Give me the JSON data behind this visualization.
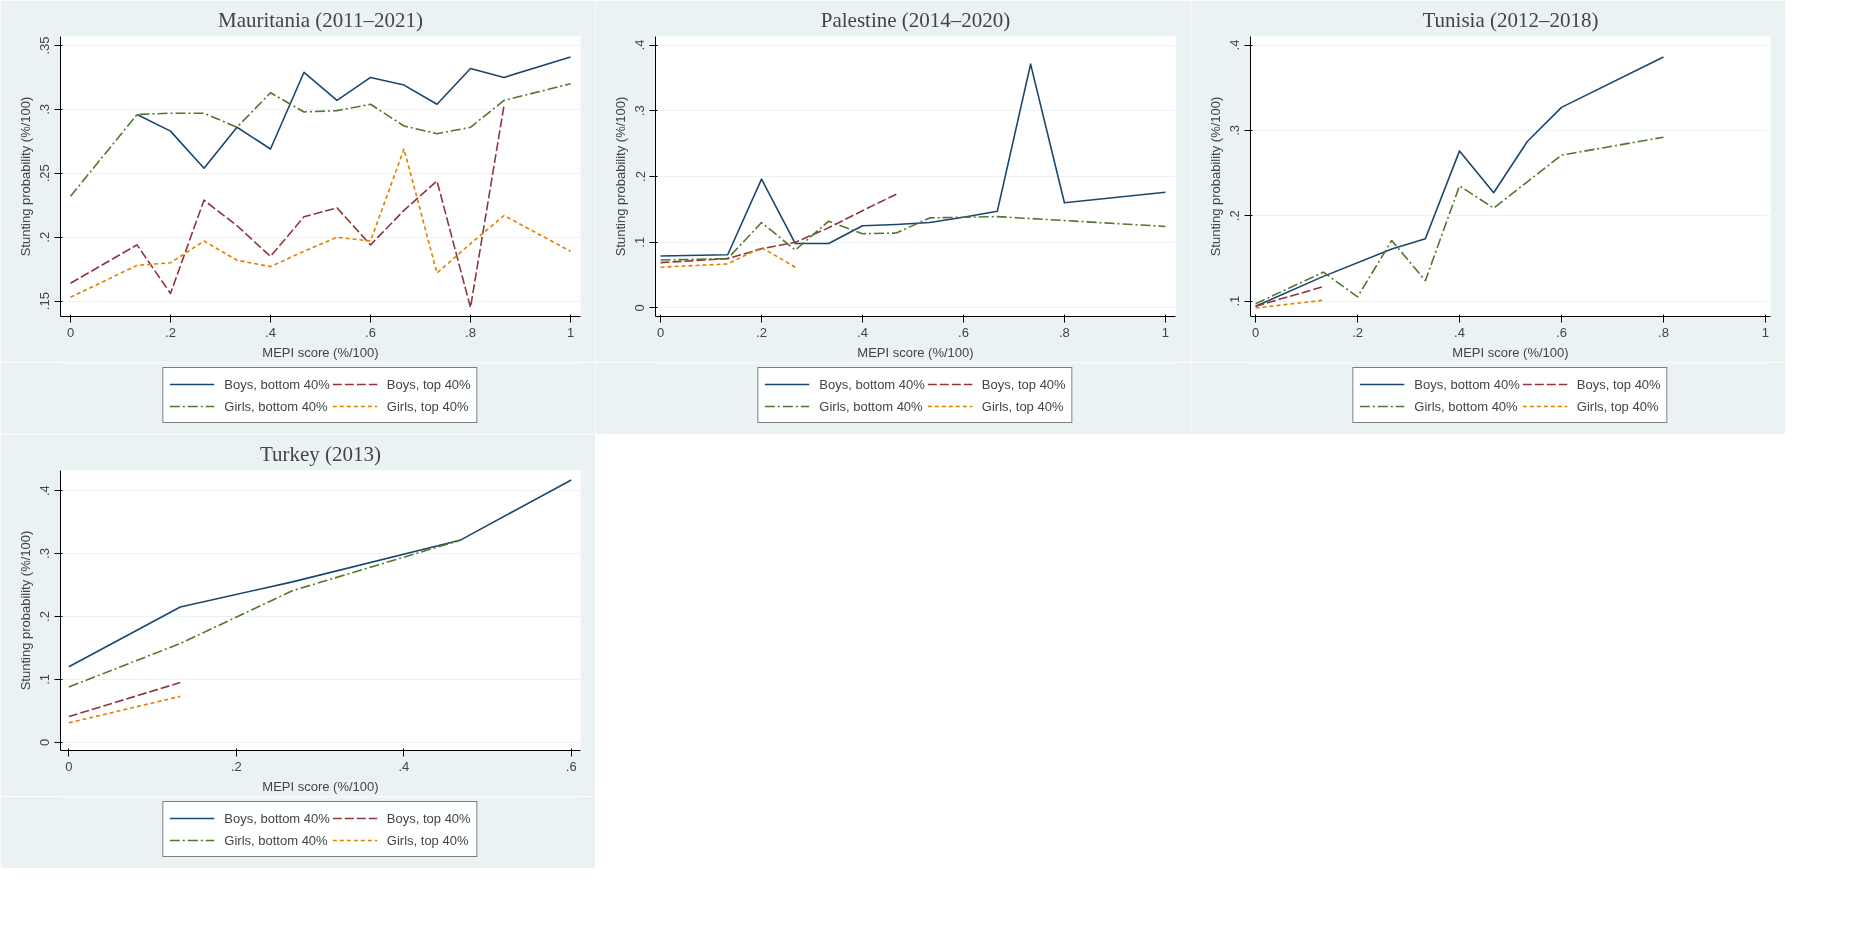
{
  "chart_data": [
    {
      "type": "line",
      "title": "Mauritania (2011–2021)",
      "xlabel": "MEPI score (%/100)",
      "ylabel": "Stunting probability (%/100)",
      "xlim": [
        -0.02,
        1.02
      ],
      "ylim": [
        0.138,
        0.357
      ],
      "xticks": [
        0,
        {
          "value": 0.2,
          "label": ".2"
        },
        {
          "value": 0.4,
          "label": ".4"
        },
        {
          "value": 0.6,
          "label": ".6"
        },
        {
          "value": 0.8,
          "label": ".8"
        },
        1
      ],
      "yticks": [
        {
          "value": 0.15,
          "label": ".15"
        },
        {
          "value": 0.2,
          "label": ".2"
        },
        {
          "value": 0.25,
          "label": ".25"
        },
        {
          "value": 0.3,
          "label": ".3"
        },
        {
          "value": 0.35,
          "label": ".35"
        }
      ],
      "grid": "y",
      "legend": "bottom",
      "series": [
        {
          "name": "Boys, bottom 40%",
          "color": "#1a476f",
          "line_style": "solid",
          "x": [
            0.133,
            0.2,
            0.267,
            0.333,
            0.4,
            0.467,
            0.533,
            0.6,
            0.667,
            0.733,
            0.8,
            0.867,
            1
          ],
          "values": [
            0.296,
            0.283,
            0.254,
            0.286,
            0.269,
            0.329,
            0.307,
            0.325,
            0.319,
            0.304,
            0.332,
            0.325,
            0.341
          ]
        },
        {
          "name": "Boys, top 40%",
          "color": "#90353b",
          "line_style": "longdash",
          "x": [
            0,
            0.133,
            0.2,
            0.267,
            0.333,
            0.4,
            0.467,
            0.533,
            0.6,
            0.667,
            0.733,
            0.8,
            0.867
          ],
          "values": [
            0.164,
            0.194,
            0.156,
            0.229,
            0.209,
            0.185,
            0.216,
            0.223,
            0.194,
            0.221,
            0.244,
            0.145,
            0.303
          ]
        },
        {
          "name": "Girls, bottom 40%",
          "color": "#55752f",
          "line_style": "dashdot",
          "x": [
            0,
            0.133,
            0.2,
            0.267,
            0.333,
            0.4,
            0.467,
            0.533,
            0.6,
            0.667,
            0.733,
            0.8,
            0.867,
            1
          ],
          "values": [
            0.232,
            0.296,
            0.297,
            0.297,
            0.286,
            0.313,
            0.298,
            0.299,
            0.304,
            0.287,
            0.281,
            0.286,
            0.307,
            0.32
          ]
        },
        {
          "name": "Girls, top 40%",
          "color": "#e37e00",
          "line_style": "dashed",
          "x": [
            0,
            0.133,
            0.2,
            0.267,
            0.333,
            0.4,
            0.467,
            0.533,
            0.6,
            0.667,
            0.733,
            0.8,
            0.867,
            1
          ],
          "values": [
            0.153,
            0.178,
            0.18,
            0.197,
            0.182,
            0.177,
            0.189,
            0.2,
            0.197,
            0.269,
            0.172,
            0.195,
            0.217,
            0.189
          ]
        }
      ]
    },
    {
      "type": "line",
      "title": "Palestine (2014–2020)",
      "xlabel": "MEPI score (%/100)",
      "ylabel": "Stunting probability (%/100)",
      "xlim": [
        -0.01,
        1.02
      ],
      "ylim": [
        -0.013,
        0.413
      ],
      "xticks": [
        0,
        {
          "value": 0.2,
          "label": ".2"
        },
        {
          "value": 0.4,
          "label": ".4"
        },
        {
          "value": 0.6,
          "label": ".6"
        },
        {
          "value": 0.8,
          "label": ".8"
        },
        1
      ],
      "yticks": [
        0,
        {
          "value": 0.1,
          "label": ".1"
        },
        {
          "value": 0.2,
          "label": ".2"
        },
        {
          "value": 0.3,
          "label": ".3"
        },
        {
          "value": 0.4,
          "label": ".4"
        }
      ],
      "grid": "y",
      "legend": "bottom",
      "series": [
        {
          "name": "Boys, bottom 40%",
          "color": "#1a476f",
          "line_style": "solid",
          "x": [
            0,
            0.133,
            0.2,
            0.267,
            0.333,
            0.4,
            0.467,
            0.533,
            0.6,
            0.667,
            0.733,
            0.8,
            1
          ],
          "values": [
            0.079,
            0.081,
            0.196,
            0.098,
            0.098,
            0.125,
            0.127,
            0.13,
            0.138,
            0.147,
            0.371,
            0.16,
            0.176
          ]
        },
        {
          "name": "Boys, top 40%",
          "color": "#90353b",
          "line_style": "longdash",
          "x": [
            0,
            0.133,
            0.2,
            0.267,
            0.333,
            0.4,
            0.467
          ],
          "values": [
            0.069,
            0.075,
            0.09,
            0.1,
            0.122,
            0.148,
            0.173
          ]
        },
        {
          "name": "Girls, bottom 40%",
          "color": "#55752f",
          "line_style": "dashdot",
          "x": [
            0,
            0.133,
            0.2,
            0.267,
            0.333,
            0.4,
            0.467,
            0.533,
            0.6,
            0.667,
            1
          ],
          "values": [
            0.073,
            0.075,
            0.13,
            0.088,
            0.132,
            0.113,
            0.114,
            0.137,
            0.138,
            0.139,
            0.124
          ]
        },
        {
          "name": "Girls, top 40%",
          "color": "#e37e00",
          "line_style": "dashed",
          "x": [
            0,
            0.133,
            0.2,
            0.267
          ],
          "values": [
            0.062,
            0.067,
            0.092,
            0.062
          ]
        }
      ]
    },
    {
      "type": "line",
      "title": "Tunisia (2012–2018)",
      "xlabel": "MEPI score (%/100)",
      "ylabel": "Stunting probability (%/100)",
      "xlim": [
        -0.01,
        1.01
      ],
      "ylim": [
        0.082,
        0.41
      ],
      "xticks": [
        0,
        {
          "value": 0.2,
          "label": ".2"
        },
        {
          "value": 0.4,
          "label": ".4"
        },
        {
          "value": 0.6,
          "label": ".6"
        },
        {
          "value": 0.8,
          "label": ".8"
        },
        1
      ],
      "yticks": [
        {
          "value": 0.1,
          "label": ".1"
        },
        {
          "value": 0.2,
          "label": ".2"
        },
        {
          "value": 0.3,
          "label": ".3"
        },
        {
          "value": 0.4,
          "label": ".4"
        }
      ],
      "grid": "y",
      "legend": "bottom",
      "series": [
        {
          "name": "Boys, bottom 40%",
          "color": "#1a476f",
          "line_style": "solid",
          "x": [
            0,
            0.133,
            0.267,
            0.333,
            0.4,
            0.467,
            0.533,
            0.6,
            0.8
          ],
          "values": [
            0.094,
            0.129,
            0.161,
            0.173,
            0.276,
            0.227,
            0.287,
            0.327,
            0.386
          ]
        },
        {
          "name": "Boys, top 40%",
          "color": "#90353b",
          "line_style": "longdash",
          "x": [
            0,
            0.133
          ],
          "values": [
            0.094,
            0.117
          ]
        },
        {
          "name": "Girls, bottom 40%",
          "color": "#55752f",
          "line_style": "dashdot",
          "x": [
            0,
            0.133,
            0.2,
            0.267,
            0.333,
            0.4,
            0.467,
            0.6,
            0.8
          ],
          "values": [
            0.097,
            0.134,
            0.105,
            0.171,
            0.124,
            0.235,
            0.209,
            0.271,
            0.292
          ]
        },
        {
          "name": "Girls, top 40%",
          "color": "#e37e00",
          "line_style": "dashed",
          "x": [
            0,
            0.133
          ],
          "values": [
            0.092,
            0.101
          ]
        }
      ]
    },
    {
      "type": "line",
      "title": "Turkey (2013)",
      "xlabel": "MEPI score (%/100)",
      "ylabel": "Stunting probability (%/100)",
      "xlim": [
        -0.01,
        0.611
      ],
      "ylim": [
        -0.013,
        0.432
      ],
      "xticks": [
        0,
        {
          "value": 0.2,
          "label": ".2"
        },
        {
          "value": 0.4,
          "label": ".4"
        },
        {
          "value": 0.6,
          "label": ".6"
        }
      ],
      "yticks": [
        0,
        {
          "value": 0.1,
          "label": ".1"
        },
        {
          "value": 0.2,
          "label": ".2"
        },
        {
          "value": 0.3,
          "label": ".3"
        },
        {
          "value": 0.4,
          "label": ".4"
        }
      ],
      "grid": "y",
      "legend": "bottom",
      "series": [
        {
          "name": "Boys, bottom 40%",
          "color": "#1a476f",
          "line_style": "solid",
          "x": [
            0,
            0.133,
            0.267,
            0.467,
            0.6
          ],
          "values": [
            0.12,
            0.215,
            0.255,
            0.321,
            0.417
          ]
        },
        {
          "name": "Boys, top 40%",
          "color": "#90353b",
          "line_style": "longdash",
          "x": [
            0,
            0.133
          ],
          "values": [
            0.041,
            0.095
          ]
        },
        {
          "name": "Girls, bottom 40%",
          "color": "#55752f",
          "line_style": "dashdot",
          "x": [
            0,
            0.133,
            0.267,
            0.467
          ],
          "values": [
            0.088,
            0.157,
            0.241,
            0.321
          ]
        },
        {
          "name": "Girls, top 40%",
          "color": "#e37e00",
          "line_style": "dashed",
          "x": [
            0,
            0.133
          ],
          "values": [
            0.031,
            0.073
          ]
        }
      ]
    }
  ]
}
